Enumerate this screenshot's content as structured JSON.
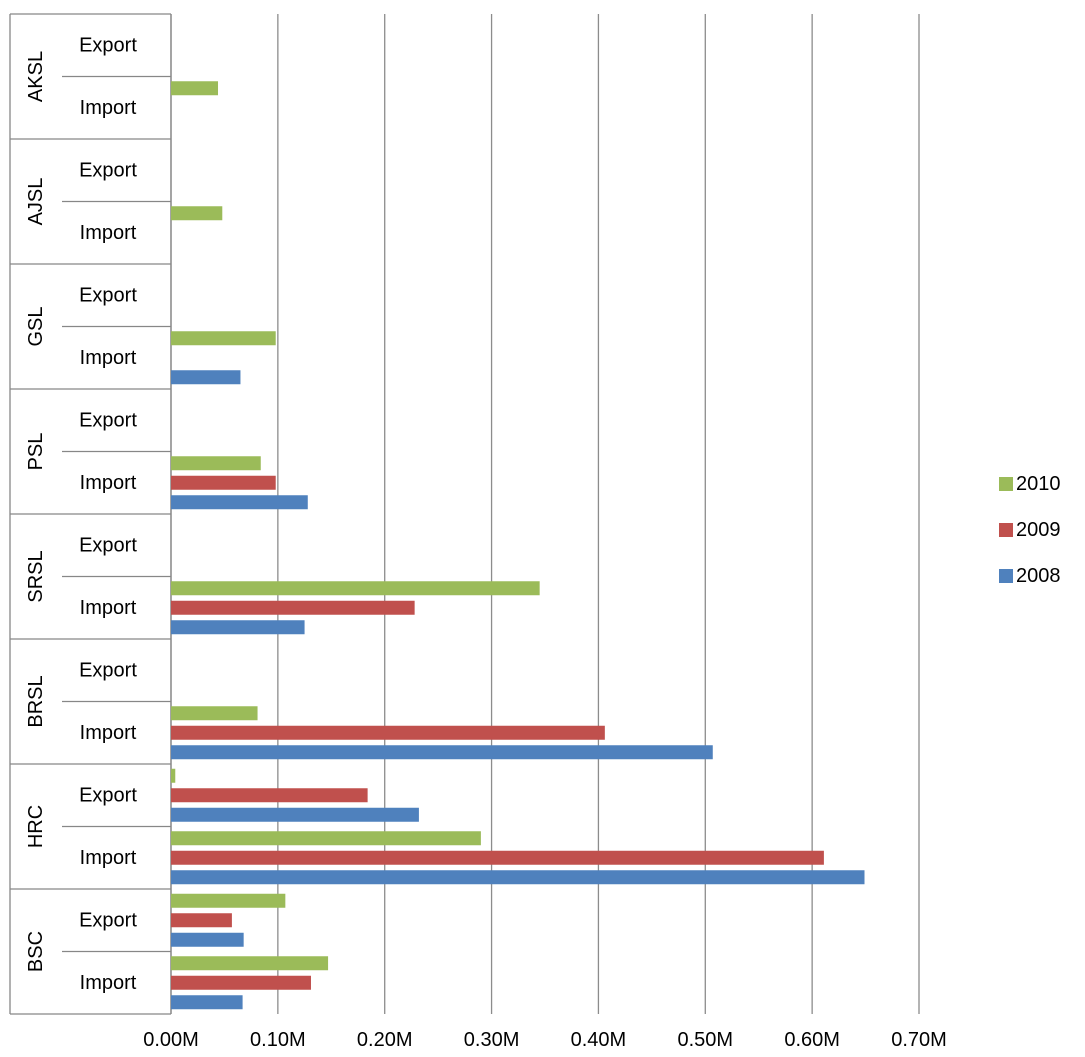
{
  "chart_data": {
    "type": "bar",
    "orientation": "horizontal",
    "groups": [
      "AKSL",
      "AJSL",
      "GSL",
      "PSL",
      "SRSL",
      "BRSL",
      "HRC",
      "BSC"
    ],
    "subcategories": [
      "Export",
      "Import"
    ],
    "x_ticks": [
      "0.00M",
      "0.10M",
      "0.20M",
      "0.30M",
      "0.40M",
      "0.50M",
      "0.60M",
      "0.70M"
    ],
    "xlim": [
      0,
      0.7
    ],
    "unit": "M",
    "grid": true,
    "legend_position": "right",
    "series": [
      {
        "name": "2010",
        "color": "#9BBB59",
        "values": {
          "AKSL": {
            "Export": 0,
            "Import": 0.044
          },
          "AJSL": {
            "Export": 0,
            "Import": 0.048
          },
          "GSL": {
            "Export": 0,
            "Import": 0.098
          },
          "PSL": {
            "Export": 0,
            "Import": 0.084
          },
          "SRSL": {
            "Export": 0,
            "Import": 0.345
          },
          "BRSL": {
            "Export": 0,
            "Import": 0.081
          },
          "HRC": {
            "Export": 0.004,
            "Import": 0.29
          },
          "BSC": {
            "Export": 0.107,
            "Import": 0.147
          }
        }
      },
      {
        "name": "2009",
        "color": "#C0504D",
        "values": {
          "AKSL": {
            "Export": 0,
            "Import": 0
          },
          "AJSL": {
            "Export": 0,
            "Import": 0
          },
          "GSL": {
            "Export": 0,
            "Import": 0
          },
          "PSL": {
            "Export": 0,
            "Import": 0.098
          },
          "SRSL": {
            "Export": 0,
            "Import": 0.228
          },
          "BRSL": {
            "Export": 0,
            "Import": 0.406
          },
          "HRC": {
            "Export": 0.184,
            "Import": 0.611
          },
          "BSC": {
            "Export": 0.057,
            "Import": 0.131
          }
        }
      },
      {
        "name": "2008",
        "color": "#4F81BD",
        "values": {
          "AKSL": {
            "Export": 0,
            "Import": 0
          },
          "AJSL": {
            "Export": 0,
            "Import": 0
          },
          "GSL": {
            "Export": 0,
            "Import": 0.065
          },
          "PSL": {
            "Export": 0,
            "Import": 0.128
          },
          "SRSL": {
            "Export": 0,
            "Import": 0.125
          },
          "BRSL": {
            "Export": 0,
            "Import": 0.507
          },
          "HRC": {
            "Export": 0.232,
            "Import": 0.649
          },
          "BSC": {
            "Export": 0.068,
            "Import": 0.067
          }
        }
      }
    ],
    "legend_order": [
      "2010",
      "2009",
      "2008"
    ]
  }
}
